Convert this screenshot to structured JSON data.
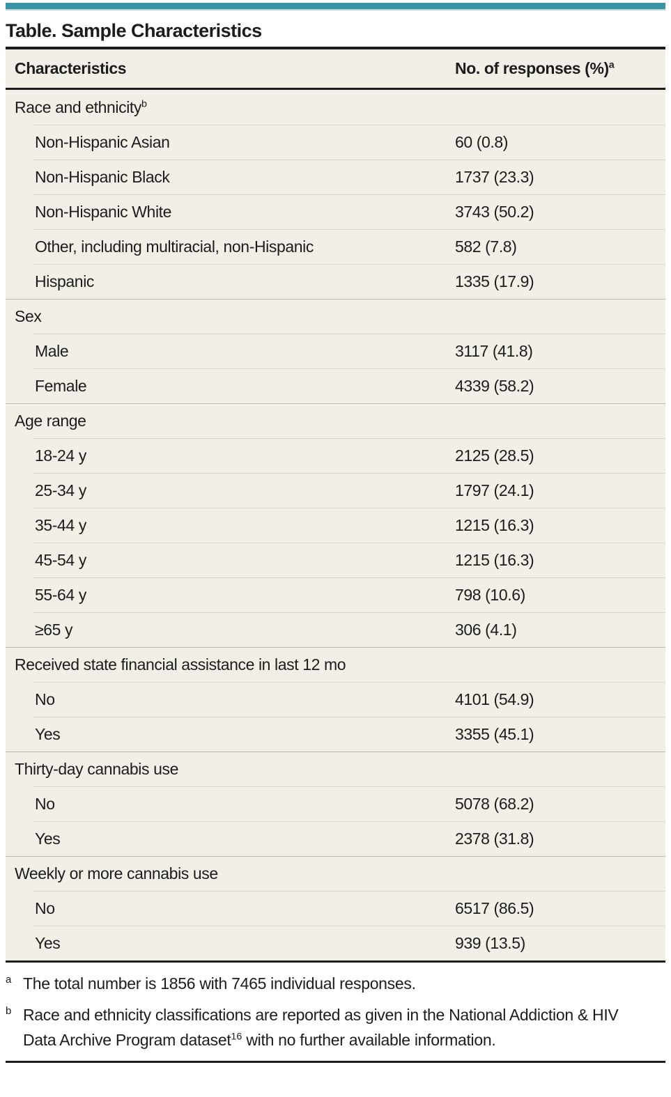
{
  "colors": {
    "accent_teal": "#3b93a6",
    "accent_teal_light": "#b7d4da",
    "table_bg": "#f2f0e6",
    "rule_black": "#1c1c1c",
    "row_separator": "#d9d6c7",
    "section_separator": "#bdbaad",
    "text_color": "#1c1c1c"
  },
  "title": "Table. Sample Characteristics",
  "table": {
    "columns": [
      {
        "label": "Characteristics",
        "sup": ""
      },
      {
        "label": "No. of responses (%)",
        "sup": "a"
      }
    ],
    "rows": [
      {
        "type": "section",
        "label": "Race and ethnicity",
        "sup": "b",
        "value": ""
      },
      {
        "type": "item",
        "label": "Non-Hispanic Asian",
        "value": "60 (0.8)"
      },
      {
        "type": "item",
        "label": "Non-Hispanic Black",
        "value": "1737 (23.3)"
      },
      {
        "type": "item",
        "label": "Non-Hispanic White",
        "value": "3743 (50.2)"
      },
      {
        "type": "item",
        "label": "Other, including multiracial, non-Hispanic",
        "value": "582 (7.8)"
      },
      {
        "type": "item",
        "label": "Hispanic",
        "value": "1335 (17.9)"
      },
      {
        "type": "section",
        "label": "Sex",
        "sup": "",
        "value": ""
      },
      {
        "type": "item",
        "label": "Male",
        "value": "3117 (41.8)"
      },
      {
        "type": "item",
        "label": "Female",
        "value": "4339 (58.2)"
      },
      {
        "type": "section",
        "label": "Age range",
        "sup": "",
        "value": ""
      },
      {
        "type": "item",
        "label": "18-24 y",
        "value": "2125 (28.5)"
      },
      {
        "type": "item",
        "label": "25-34 y",
        "value": "1797 (24.1)"
      },
      {
        "type": "item",
        "label": "35-44 y",
        "value": "1215 (16.3)"
      },
      {
        "type": "item",
        "label": "45-54 y",
        "value": "1215 (16.3)"
      },
      {
        "type": "item",
        "label": "55-64 y",
        "value": "798 (10.6)"
      },
      {
        "type": "item",
        "label": "≥65 y",
        "value": "306 (4.1)"
      },
      {
        "type": "section",
        "label": "Received state financial assistance in last 12 mo",
        "sup": "",
        "value": ""
      },
      {
        "type": "item",
        "label": "No",
        "value": "4101 (54.9)"
      },
      {
        "type": "item",
        "label": "Yes",
        "value": "3355 (45.1)"
      },
      {
        "type": "section",
        "label": "Thirty-day cannabis use",
        "sup": "",
        "value": ""
      },
      {
        "type": "item",
        "label": "No",
        "value": "5078 (68.2)"
      },
      {
        "type": "item",
        "label": "Yes",
        "value": "2378 (31.8)"
      },
      {
        "type": "section",
        "label": "Weekly or more cannabis use",
        "sup": "",
        "value": ""
      },
      {
        "type": "item",
        "label": "No",
        "value": "6517 (86.5)"
      },
      {
        "type": "item",
        "label": "Yes",
        "value": "939 (13.5)"
      }
    ]
  },
  "footnotes": [
    {
      "marker": "a",
      "segments": [
        {
          "text": "The total number is 1856 with 7465 individual responses."
        }
      ]
    },
    {
      "marker": "b",
      "segments": [
        {
          "text": "Race and ethnicity classifications are reported as given in the National Addiction & HIV Data Archive Program dataset"
        },
        {
          "sup": "16"
        },
        {
          "text": " with no further available information."
        }
      ]
    }
  ]
}
